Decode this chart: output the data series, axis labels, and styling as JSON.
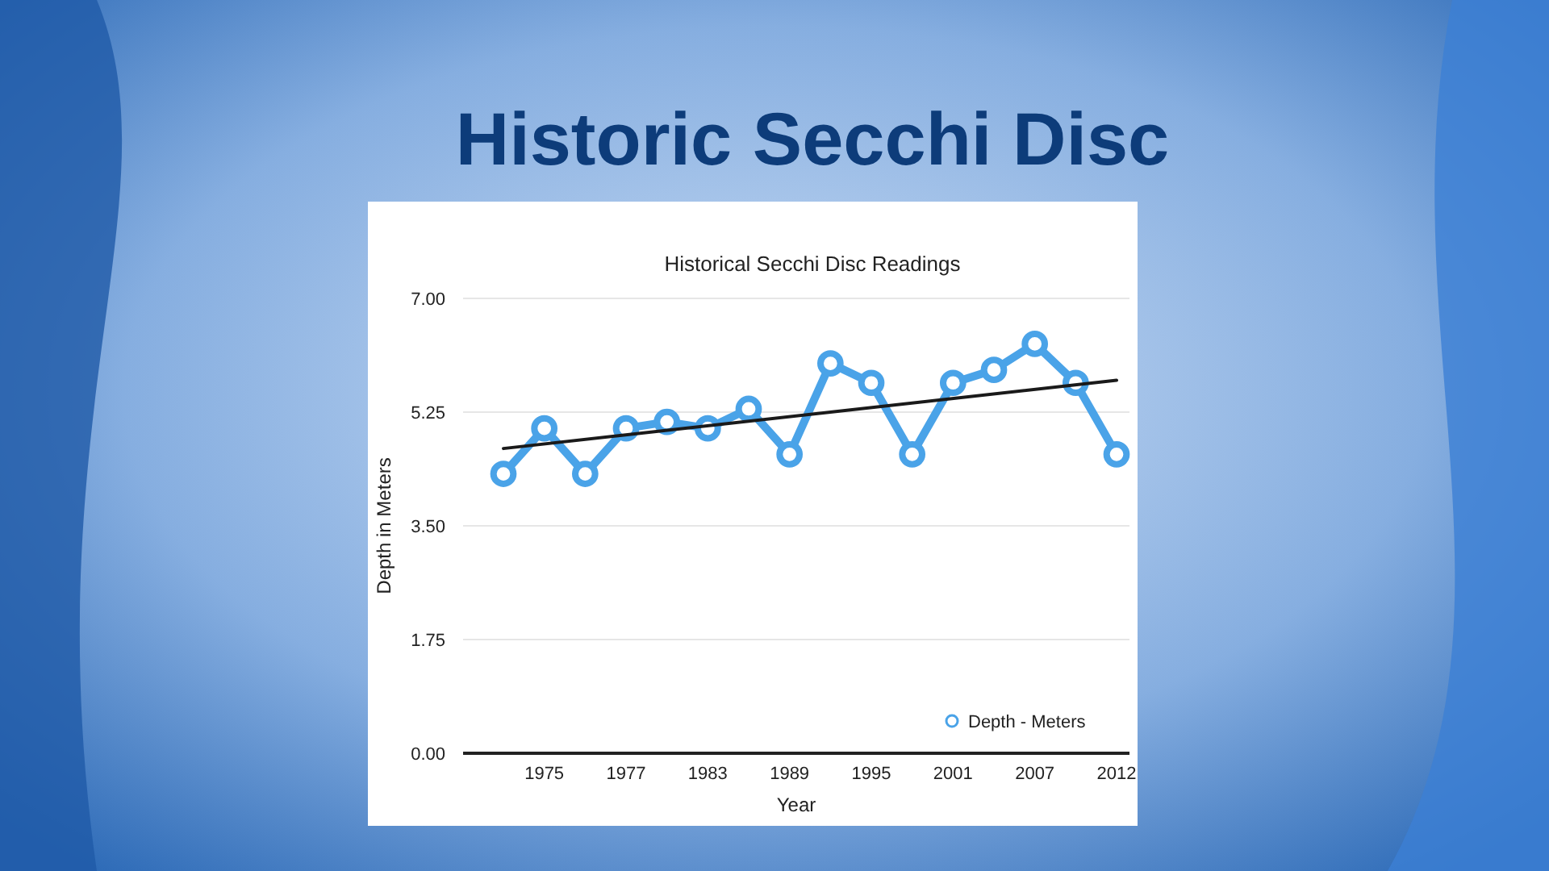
{
  "chart_data": {
    "type": "line",
    "title": "Historic Secchi Disc",
    "subtitle": "Historical Secchi Disc Readings",
    "xlabel": "Year",
    "ylabel": "Depth in Meters",
    "categories": [
      null,
      "1975",
      null,
      "1977",
      null,
      "1983",
      null,
      "1989",
      null,
      "1995",
      null,
      "2001",
      null,
      "2007",
      null,
      "2012"
    ],
    "series": [
      {
        "name": "Depth - Meters",
        "color": "#4aa3e8",
        "marker": "circle",
        "values": [
          4.3,
          5.0,
          4.3,
          5.0,
          5.1,
          5.0,
          5.3,
          4.6,
          6.0,
          5.7,
          4.6,
          5.7,
          5.9,
          6.3,
          5.7,
          4.6
        ]
      },
      {
        "type": "line",
        "color": "#1a1a1a",
        "marker": "none",
        "values": [
          4.69,
          null,
          null,
          null,
          null,
          null,
          null,
          null,
          null,
          null,
          null,
          null,
          null,
          null,
          null,
          5.74
        ]
      }
    ],
    "ylim": [
      0,
      7
    ],
    "yticks": [
      {
        "value": 0,
        "label": "0.00"
      },
      {
        "value": 1.75,
        "label": "1.75"
      },
      {
        "value": 3.5,
        "label": "3.50"
      },
      {
        "value": 5.25,
        "label": "5.25"
      },
      {
        "value": 7,
        "label": "7.00"
      }
    ],
    "grid": "y",
    "legend": "bottom right"
  }
}
